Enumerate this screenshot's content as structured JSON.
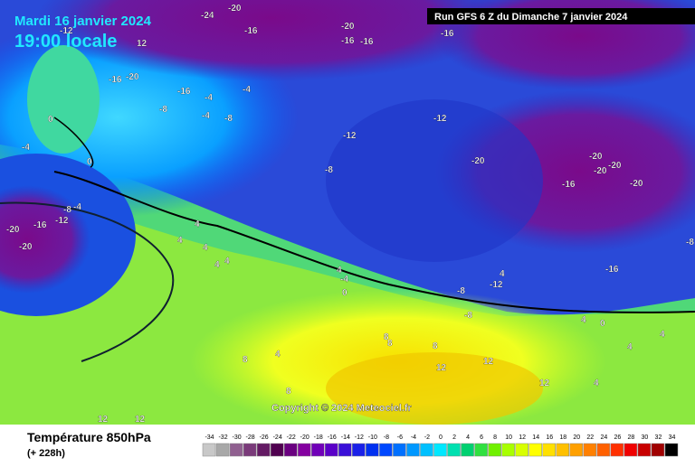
{
  "header": {
    "date": "Mardi 16 janvier 2024",
    "time": "19:00 locale",
    "run": "Run GFS 6 Z du Dimanche 7 janvier 2024"
  },
  "copyright": "Copyright © 2024 Meteociel.fr",
  "footer": {
    "title": "Température 850hPa",
    "lead": "(+ 228h)"
  },
  "legend": {
    "ticks": [
      -34,
      -32,
      -30,
      -28,
      -26,
      -24,
      -22,
      -20,
      -18,
      -16,
      -14,
      -12,
      -10,
      -8,
      -6,
      -4,
      -2,
      0,
      2,
      4,
      6,
      8,
      10,
      12,
      14,
      16,
      18,
      20,
      22,
      24,
      26,
      28,
      30,
      32,
      34
    ],
    "colors": [
      "#c8c8c8",
      "#a8a8a8",
      "#906090",
      "#7a3a7a",
      "#641a64",
      "#500050",
      "#6a0080",
      "#8400a0",
      "#7000b8",
      "#5a00c8",
      "#3a10d8",
      "#1a20e8",
      "#0030f0",
      "#0048ff",
      "#0070ff",
      "#0098ff",
      "#00c0ff",
      "#00e8ff",
      "#00e0b0",
      "#00d070",
      "#30e040",
      "#70f000",
      "#a8ff00",
      "#d8ff00",
      "#ffff00",
      "#ffe000",
      "#ffc000",
      "#ffa000",
      "#ff8000",
      "#ff6000",
      "#ff3000",
      "#f00000",
      "#c80000",
      "#a00000",
      "#000000"
    ]
  },
  "contour_labels": [
    -24,
    -20,
    -20,
    -16,
    -16,
    -16,
    -16,
    -12,
    12,
    -16,
    -20,
    -16,
    -4,
    -4,
    -8,
    -4,
    -8,
    0,
    -4,
    0,
    -12,
    -12,
    -8,
    -20,
    -20,
    -20,
    -20,
    -16,
    -20,
    -8,
    -4,
    -12,
    -16,
    -20,
    -20,
    4,
    4,
    4,
    4,
    4,
    4,
    -4,
    0,
    4,
    -12,
    -16,
    -8,
    -8,
    -8,
    4,
    0,
    4,
    8,
    8,
    8,
    8,
    8,
    12,
    12,
    12,
    12,
    12,
    4,
    4,
    4
  ]
}
